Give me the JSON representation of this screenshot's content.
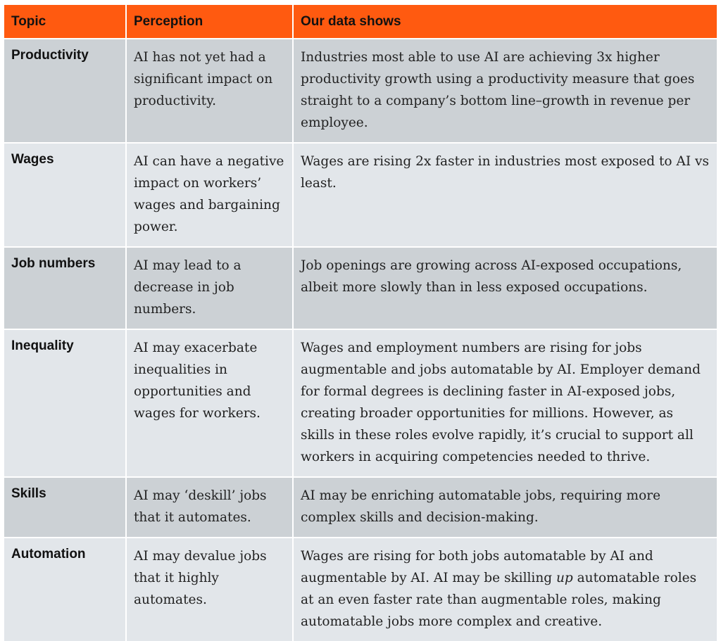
{
  "headers": {
    "topic": "Topic",
    "perception": "Perception",
    "data": "Our data shows"
  },
  "rows": [
    {
      "topic": "Productivity",
      "perception": "AI has not yet had a significant impact on productivity.",
      "data": "Industries most able to use AI are achieving 3x higher productivity growth using a productivity measure that goes straight to a company’s bottom line–growth in revenue per employee."
    },
    {
      "topic": "Wages",
      "perception": "AI can have a negative impact on workers’ wages and bargaining power.",
      "data": "Wages are rising 2x faster in industries most exposed to AI vs least."
    },
    {
      "topic": "Job numbers",
      "perception": "AI may lead to a decrease in job numbers.",
      "data": "Job openings are growing across AI-exposed occupations, albeit more slowly than in less exposed occupations."
    },
    {
      "topic": "Inequality",
      "perception": "AI may exacerbate inequalities in opportunities and wages for workers.",
      "data": "Wages and employment numbers are rising for jobs augmentable and jobs automatable by AI. Employer demand for formal degrees is declining faster in AI-exposed jobs, creating broader opportunities for millions. However, as skills in these roles evolve rapidly, it’s crucial to support all workers in acquiring competencies needed to thrive."
    },
    {
      "topic": "Skills",
      "perception": "AI may ‘deskill’ jobs that it automates.",
      "data": "AI may be enriching automatable jobs, requiring more complex skills and decision-making."
    },
    {
      "topic": "Automation",
      "perception": "AI may devalue jobs that it highly automates.",
      "data_before": "Wages are rising for both jobs automatable by AI and augmentable by AI. AI may be skilling ",
      "data_emphasis": "up",
      "data_after": " automatable roles at an even faster rate than augmentable roles, making automatable jobs more complex and creative."
    }
  ]
}
